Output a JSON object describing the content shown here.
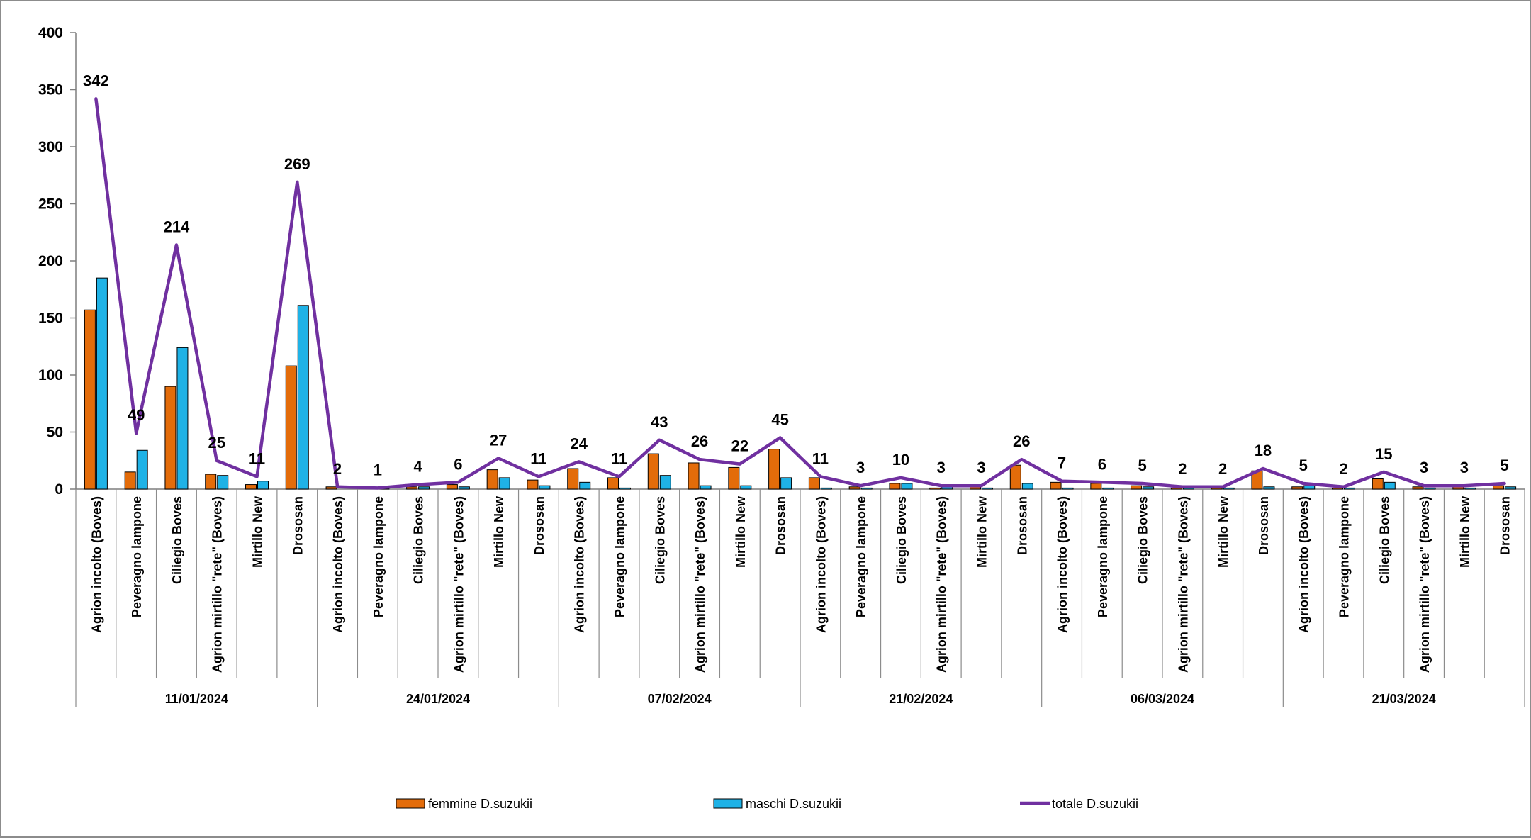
{
  "chart_data": {
    "type": "bar",
    "title": "",
    "xlabel": "",
    "ylabel": "",
    "ylim": [
      0,
      400
    ],
    "yticks": [
      0,
      50,
      100,
      150,
      200,
      250,
      300,
      350,
      400
    ],
    "grid": false,
    "legend_position": "bottom",
    "groups": [
      "11/01/2024",
      "24/01/2024",
      "07/02/2024",
      "21/02/2024",
      "06/03/2024",
      "21/03/2024"
    ],
    "sites": [
      "Agrion incolto (Boves)",
      "Peveragno lampone",
      "Ciliegio Boves",
      "Agrion mirtillo \"rete\" (Boves)",
      "Mirtillo New",
      "Drososan"
    ],
    "series": [
      {
        "name": "femmine D.suzukii",
        "type": "bar",
        "color": "#E36C0A",
        "values": [
          157,
          15,
          90,
          13,
          4,
          108,
          2,
          0,
          2,
          4,
          17,
          8,
          18,
          10,
          31,
          23,
          19,
          35,
          10,
          2,
          5,
          1,
          2,
          21,
          6,
          5,
          3,
          1,
          1,
          16,
          2,
          1,
          9,
          2,
          2,
          3
        ]
      },
      {
        "name": "maschi D.suzukii",
        "type": "bar",
        "color": "#1FB2E6",
        "values": [
          185,
          34,
          124,
          12,
          7,
          161,
          0,
          1,
          2,
          2,
          10,
          3,
          6,
          1,
          12,
          3,
          3,
          10,
          1,
          1,
          5,
          2,
          1,
          5,
          1,
          1,
          2,
          1,
          1,
          2,
          3,
          1,
          6,
          1,
          1,
          2
        ]
      },
      {
        "name": "totale D.suzukii",
        "type": "line",
        "color": "#7030A0",
        "values": [
          342,
          49,
          214,
          25,
          11,
          269,
          2,
          1,
          4,
          6,
          27,
          11,
          24,
          11,
          43,
          26,
          22,
          45,
          11,
          3,
          10,
          3,
          3,
          26,
          7,
          6,
          5,
          2,
          2,
          18,
          5,
          2,
          15,
          3,
          3,
          5
        ]
      }
    ]
  }
}
